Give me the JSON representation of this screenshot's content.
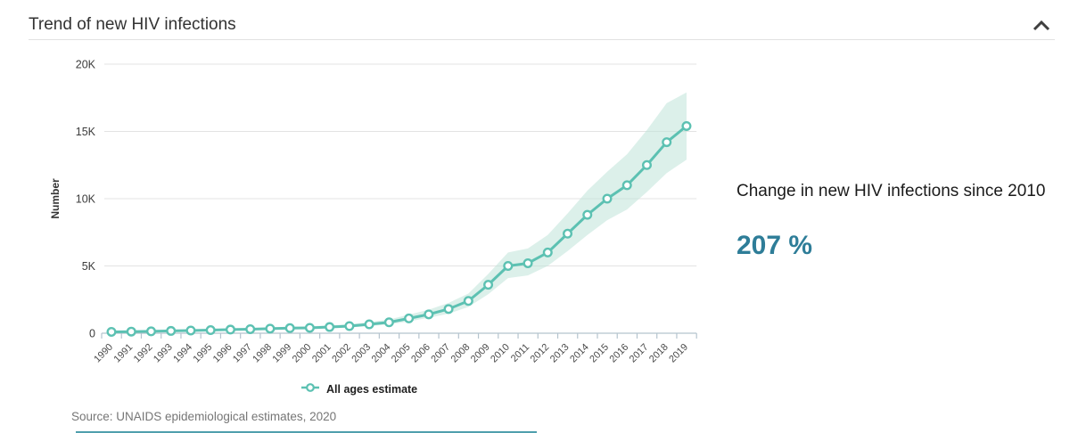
{
  "header": {
    "title": "Trend of new HIV infections",
    "collapse_icon": "chevron-up-icon"
  },
  "chart_data": {
    "type": "line",
    "title": "Trend of new HIV infections",
    "x": [
      1990,
      1991,
      1992,
      1993,
      1994,
      1995,
      1996,
      1997,
      1998,
      1999,
      2000,
      2001,
      2002,
      2003,
      2004,
      2005,
      2006,
      2007,
      2008,
      2009,
      2010,
      2011,
      2012,
      2013,
      2014,
      2015,
      2016,
      2017,
      2018,
      2019
    ],
    "series": [
      {
        "name": "All ages estimate",
        "values": [
          100,
          120,
          140,
          170,
          200,
          230,
          270,
          300,
          340,
          380,
          400,
          460,
          530,
          660,
          810,
          1100,
          1400,
          1800,
          2400,
          3600,
          5000,
          5200,
          6000,
          7400,
          8800,
          10000,
          11000,
          12500,
          14200,
          15400
        ],
        "lower_bound": [
          80,
          95,
          115,
          135,
          160,
          185,
          215,
          240,
          275,
          305,
          320,
          370,
          430,
          530,
          650,
          880,
          1150,
          1450,
          1950,
          2900,
          4100,
          4300,
          5000,
          6100,
          7300,
          8400,
          9200,
          10500,
          11900,
          12900
        ],
        "upper_bound": [
          130,
          155,
          180,
          215,
          255,
          290,
          340,
          380,
          430,
          480,
          510,
          580,
          670,
          830,
          1020,
          1380,
          1750,
          2250,
          2950,
          4400,
          6000,
          6300,
          7300,
          8900,
          10600,
          12000,
          13300,
          15100,
          17100,
          17900
        ]
      }
    ],
    "xlabel": "",
    "ylabel": "Number",
    "ylim": [
      0,
      20000
    ],
    "yticks": [
      0,
      5000,
      10000,
      15000,
      20000
    ],
    "ytick_labels": [
      "0",
      "5K",
      "10K",
      "15K",
      "20K"
    ],
    "grid": true,
    "legend_position": "bottom"
  },
  "legend": {
    "label": "All ages estimate",
    "marker": "circle-line-marker-icon"
  },
  "stat": {
    "label": "Change in new HIV infections since 2010",
    "value": "207 %"
  },
  "source": {
    "text": "Source: UNAIDS epidemiological estimates, 2020"
  },
  "colors": {
    "line": "#5cc1b2",
    "band": "#bfe3d9",
    "stat_value": "#2e7d98",
    "axis": "#b5c4ce",
    "grid": "#e3e3e3",
    "tick_label": "#4a4a4a",
    "chevron": "#3f3f3f"
  }
}
